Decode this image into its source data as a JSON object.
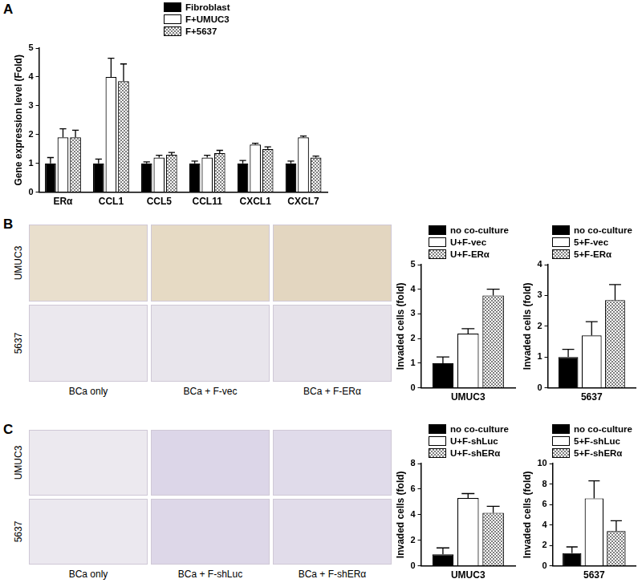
{
  "panel_labels": [
    "A",
    "B",
    "C"
  ],
  "micrographs": [
    {
      "row_labels": [
        "UMUC3",
        "5637"
      ],
      "column_labels": [
        "BCa only",
        "BCa + F-vec",
        "BCa + F-ERα"
      ]
    },
    {
      "row_labels": [
        "UMUC3",
        "5637"
      ],
      "column_labels": [
        "BCa only",
        "BCa + F-shLuc",
        "BCa + F-shERα"
      ]
    }
  ],
  "chart_data": [
    {
      "type": "bar",
      "y_label": "Gene expression level (Fold)",
      "categories": [
        "ERα",
        "CCL1",
        "CCL5",
        "CCL11",
        "CXCL1",
        "CXCL7"
      ],
      "series": [
        {
          "name": "Fibroblast",
          "color": "#000000",
          "values": [
            1.0,
            1.0,
            1.0,
            1.0,
            1.0,
            1.0
          ],
          "errors": [
            0.2,
            0.15,
            0.05,
            0.08,
            0.1,
            0.08
          ]
        },
        {
          "name": "F+UMUC3",
          "color": "#ffffff",
          "values": [
            1.9,
            4.0,
            1.2,
            1.2,
            1.65,
            1.9
          ],
          "errors": [
            0.3,
            0.65,
            0.08,
            0.08,
            0.05,
            0.05
          ]
        },
        {
          "name": "F+5637",
          "color": "#7f7f7f",
          "marker": "checkered",
          "values": [
            1.9,
            3.85,
            1.3,
            1.35,
            1.5,
            1.2
          ],
          "errors": [
            0.25,
            0.6,
            0.08,
            0.1,
            0.07,
            0.05
          ]
        }
      ],
      "ylim": [
        0,
        5
      ],
      "yticks": [
        0,
        1,
        2,
        3,
        4,
        5
      ],
      "grid": false,
      "legend": "top"
    },
    {
      "type": "bar",
      "y_label": "Invaded cells (fold)",
      "categories": [
        "UMUC3"
      ],
      "series": [
        {
          "name": "no co-culture",
          "color": "#000000",
          "values": [
            1.0
          ],
          "errors": [
            0.25
          ]
        },
        {
          "name": "U+F-vec",
          "color": "#ffffff",
          "values": [
            2.2
          ],
          "errors": [
            0.2
          ]
        },
        {
          "name": "U+F-ERα",
          "color": "#7f7f7f",
          "marker": "checkered",
          "values": [
            3.75
          ],
          "errors": [
            0.25
          ]
        }
      ],
      "ylim": [
        0,
        5
      ],
      "yticks": [
        0,
        1,
        2,
        3,
        4,
        5
      ],
      "grid": false,
      "legend": "top"
    },
    {
      "type": "bar",
      "y_label": "Invaded cells (fold)",
      "categories": [
        "5637"
      ],
      "series": [
        {
          "name": "no co-culture",
          "color": "#000000",
          "values": [
            1.0
          ],
          "errors": [
            0.25
          ]
        },
        {
          "name": "5+F-vec",
          "color": "#ffffff",
          "values": [
            1.7
          ],
          "errors": [
            0.45
          ]
        },
        {
          "name": "5+F-ERα",
          "color": "#7f7f7f",
          "marker": "checkered",
          "values": [
            2.85
          ],
          "errors": [
            0.5
          ]
        }
      ],
      "ylim": [
        0,
        4
      ],
      "yticks": [
        0,
        1,
        2,
        3,
        4
      ],
      "grid": false,
      "legend": "top"
    },
    {
      "type": "bar",
      "y_label": "Invaded cells (fold)",
      "categories": [
        "UMUC3"
      ],
      "series": [
        {
          "name": "no co-culture",
          "color": "#000000",
          "values": [
            0.9
          ],
          "errors": [
            0.5
          ]
        },
        {
          "name": "U+F-shLuc",
          "color": "#ffffff",
          "values": [
            5.3
          ],
          "errors": [
            0.35
          ]
        },
        {
          "name": "U+F-shERα",
          "color": "#7f7f7f",
          "marker": "checkered",
          "values": [
            4.15
          ],
          "errors": [
            0.5
          ]
        }
      ],
      "ylim": [
        0,
        8
      ],
      "yticks": [
        0,
        2,
        4,
        6,
        8
      ],
      "grid": false,
      "legend": "top"
    },
    {
      "type": "bar",
      "y_label": "Invaded cells (fold)",
      "categories": [
        "5637"
      ],
      "series": [
        {
          "name": "no co-culture",
          "color": "#000000",
          "values": [
            1.25
          ],
          "errors": [
            0.6
          ]
        },
        {
          "name": "5+F-shLuc",
          "color": "#ffffff",
          "values": [
            6.6
          ],
          "errors": [
            1.7
          ]
        },
        {
          "name": "5+F-shERα",
          "color": "#7f7f7f",
          "marker": "checkered",
          "values": [
            3.4
          ],
          "errors": [
            1.0
          ]
        }
      ],
      "ylim": [
        0,
        10
      ],
      "yticks": [
        0,
        2,
        4,
        6,
        8,
        10
      ],
      "grid": false,
      "legend": "top"
    }
  ]
}
